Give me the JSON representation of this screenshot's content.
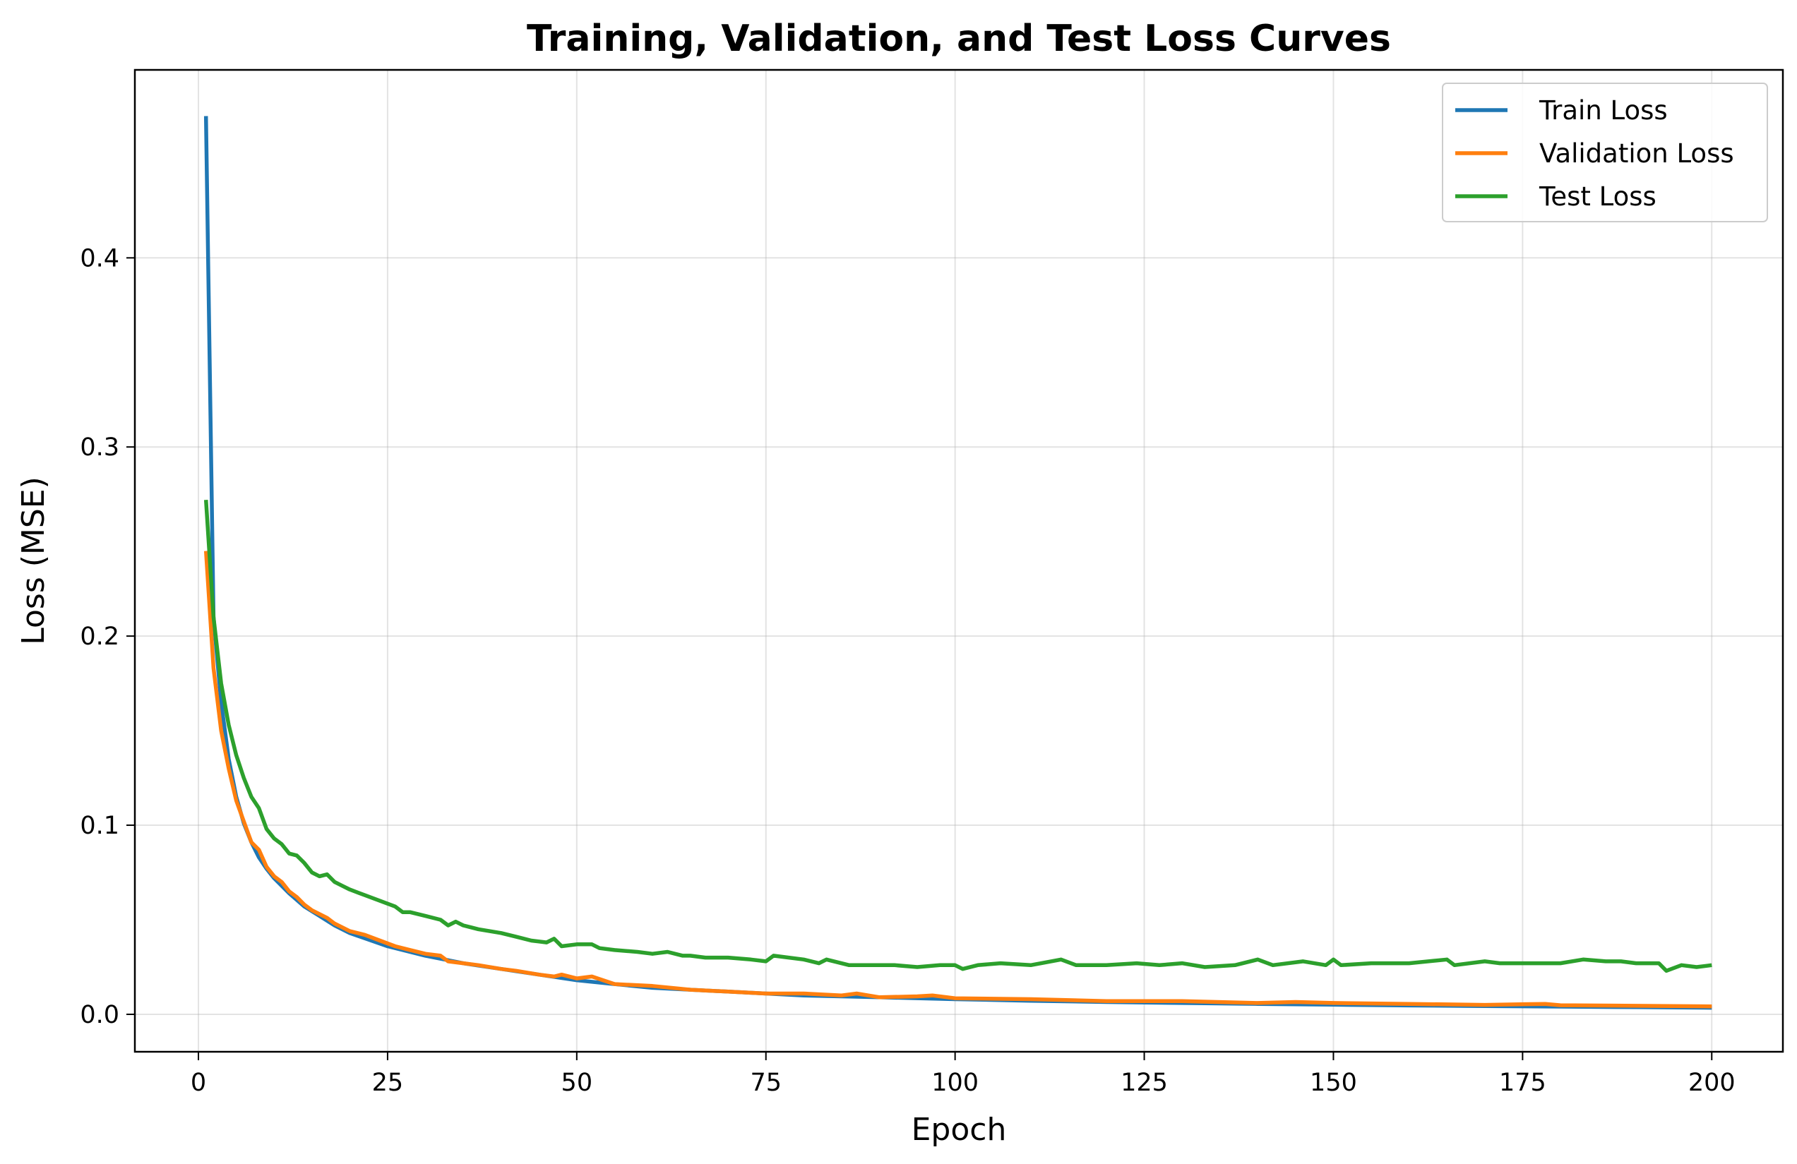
{
  "chart_data": {
    "type": "line",
    "title": "Training, Validation, and Test Loss Curves",
    "xlabel": "Epoch",
    "ylabel": "Loss (MSE)",
    "xlim": [
      -8.4,
      209.4
    ],
    "ylim": [
      -0.0198,
      0.4994
    ],
    "xticks": [
      0,
      25,
      50,
      75,
      100,
      125,
      150,
      175,
      200
    ],
    "yticks": [
      0.0,
      0.1,
      0.2,
      0.3,
      0.4
    ],
    "xtick_labels": [
      "0",
      "25",
      "50",
      "75",
      "100",
      "125",
      "150",
      "175",
      "200"
    ],
    "ytick_labels": [
      "0.0",
      "0.1",
      "0.2",
      "0.3",
      "0.4"
    ],
    "grid": true,
    "legend_position": "top-right",
    "series": [
      {
        "name": "Train Loss",
        "color": "#1f77b4",
        "x": [
          1,
          2,
          3,
          4,
          5,
          6,
          7,
          8,
          9,
          10,
          12,
          14,
          16,
          18,
          20,
          25,
          30,
          35,
          40,
          45,
          50,
          55,
          60,
          70,
          80,
          90,
          100,
          110,
          120,
          130,
          140,
          150,
          160,
          170,
          180,
          190,
          200
        ],
        "y": [
          0.475,
          0.21,
          0.165,
          0.135,
          0.115,
          0.101,
          0.091,
          0.083,
          0.077,
          0.072,
          0.064,
          0.057,
          0.052,
          0.047,
          0.043,
          0.036,
          0.031,
          0.027,
          0.024,
          0.021,
          0.018,
          0.016,
          0.014,
          0.012,
          0.01,
          0.009,
          0.008,
          0.0072,
          0.0065,
          0.006,
          0.0055,
          0.0051,
          0.0047,
          0.0044,
          0.0041,
          0.0038,
          0.0035
        ]
      },
      {
        "name": "Validation Loss",
        "color": "#ff7f0e",
        "x": [
          1,
          2,
          3,
          4,
          5,
          6,
          7,
          8,
          9,
          10,
          11,
          12,
          13,
          14,
          15,
          16,
          17,
          18,
          19,
          20,
          22,
          24,
          26,
          28,
          30,
          32,
          33,
          35,
          37,
          40,
          42,
          45,
          47,
          48,
          50,
          52,
          55,
          60,
          65,
          70,
          75,
          80,
          85,
          87,
          90,
          95,
          97,
          100,
          110,
          120,
          130,
          140,
          145,
          150,
          160,
          170,
          178,
          180,
          190,
          200
        ],
        "y": [
          0.245,
          0.183,
          0.15,
          0.13,
          0.113,
          0.102,
          0.091,
          0.087,
          0.078,
          0.073,
          0.07,
          0.065,
          0.062,
          0.058,
          0.055,
          0.053,
          0.051,
          0.048,
          0.046,
          0.044,
          0.042,
          0.039,
          0.036,
          0.034,
          0.032,
          0.031,
          0.028,
          0.027,
          0.026,
          0.024,
          0.023,
          0.021,
          0.02,
          0.021,
          0.019,
          0.02,
          0.016,
          0.015,
          0.013,
          0.012,
          0.011,
          0.011,
          0.01,
          0.011,
          0.009,
          0.0095,
          0.01,
          0.0085,
          0.008,
          0.007,
          0.007,
          0.006,
          0.0065,
          0.006,
          0.0055,
          0.005,
          0.0055,
          0.0048,
          0.0045,
          0.0042
        ]
      },
      {
        "name": "Test Loss",
        "color": "#2ca02c",
        "x": [
          1,
          2,
          3,
          4,
          5,
          6,
          7,
          8,
          9,
          10,
          11,
          12,
          13,
          14,
          15,
          16,
          17,
          18,
          19,
          20,
          22,
          24,
          26,
          27,
          28,
          30,
          32,
          33,
          34,
          35,
          36,
          37,
          40,
          42,
          44,
          46,
          47,
          48,
          50,
          52,
          53,
          55,
          58,
          60,
          62,
          64,
          65,
          67,
          70,
          73,
          75,
          76,
          80,
          82,
          83,
          86,
          90,
          92,
          95,
          98,
          100,
          101,
          103,
          106,
          110,
          114,
          116,
          120,
          124,
          127,
          130,
          133,
          137,
          140,
          142,
          146,
          149,
          150,
          151,
          155,
          160,
          165,
          166,
          170,
          172,
          175,
          180,
          183,
          186,
          188,
          190,
          193,
          194,
          196,
          198,
          200
        ],
        "y": [
          0.272,
          0.21,
          0.175,
          0.153,
          0.137,
          0.125,
          0.115,
          0.109,
          0.098,
          0.093,
          0.09,
          0.085,
          0.084,
          0.08,
          0.075,
          0.073,
          0.074,
          0.07,
          0.068,
          0.066,
          0.063,
          0.06,
          0.057,
          0.054,
          0.054,
          0.052,
          0.05,
          0.047,
          0.049,
          0.047,
          0.046,
          0.045,
          0.043,
          0.041,
          0.039,
          0.038,
          0.04,
          0.036,
          0.037,
          0.037,
          0.035,
          0.034,
          0.033,
          0.032,
          0.033,
          0.031,
          0.031,
          0.03,
          0.03,
          0.029,
          0.028,
          0.031,
          0.029,
          0.027,
          0.029,
          0.026,
          0.026,
          0.026,
          0.025,
          0.026,
          0.026,
          0.024,
          0.026,
          0.027,
          0.026,
          0.029,
          0.026,
          0.026,
          0.027,
          0.026,
          0.027,
          0.025,
          0.026,
          0.029,
          0.026,
          0.028,
          0.026,
          0.029,
          0.026,
          0.027,
          0.027,
          0.029,
          0.026,
          0.028,
          0.027,
          0.027,
          0.027,
          0.029,
          0.028,
          0.028,
          0.027,
          0.027,
          0.023,
          0.026,
          0.025,
          0.026
        ]
      }
    ]
  }
}
